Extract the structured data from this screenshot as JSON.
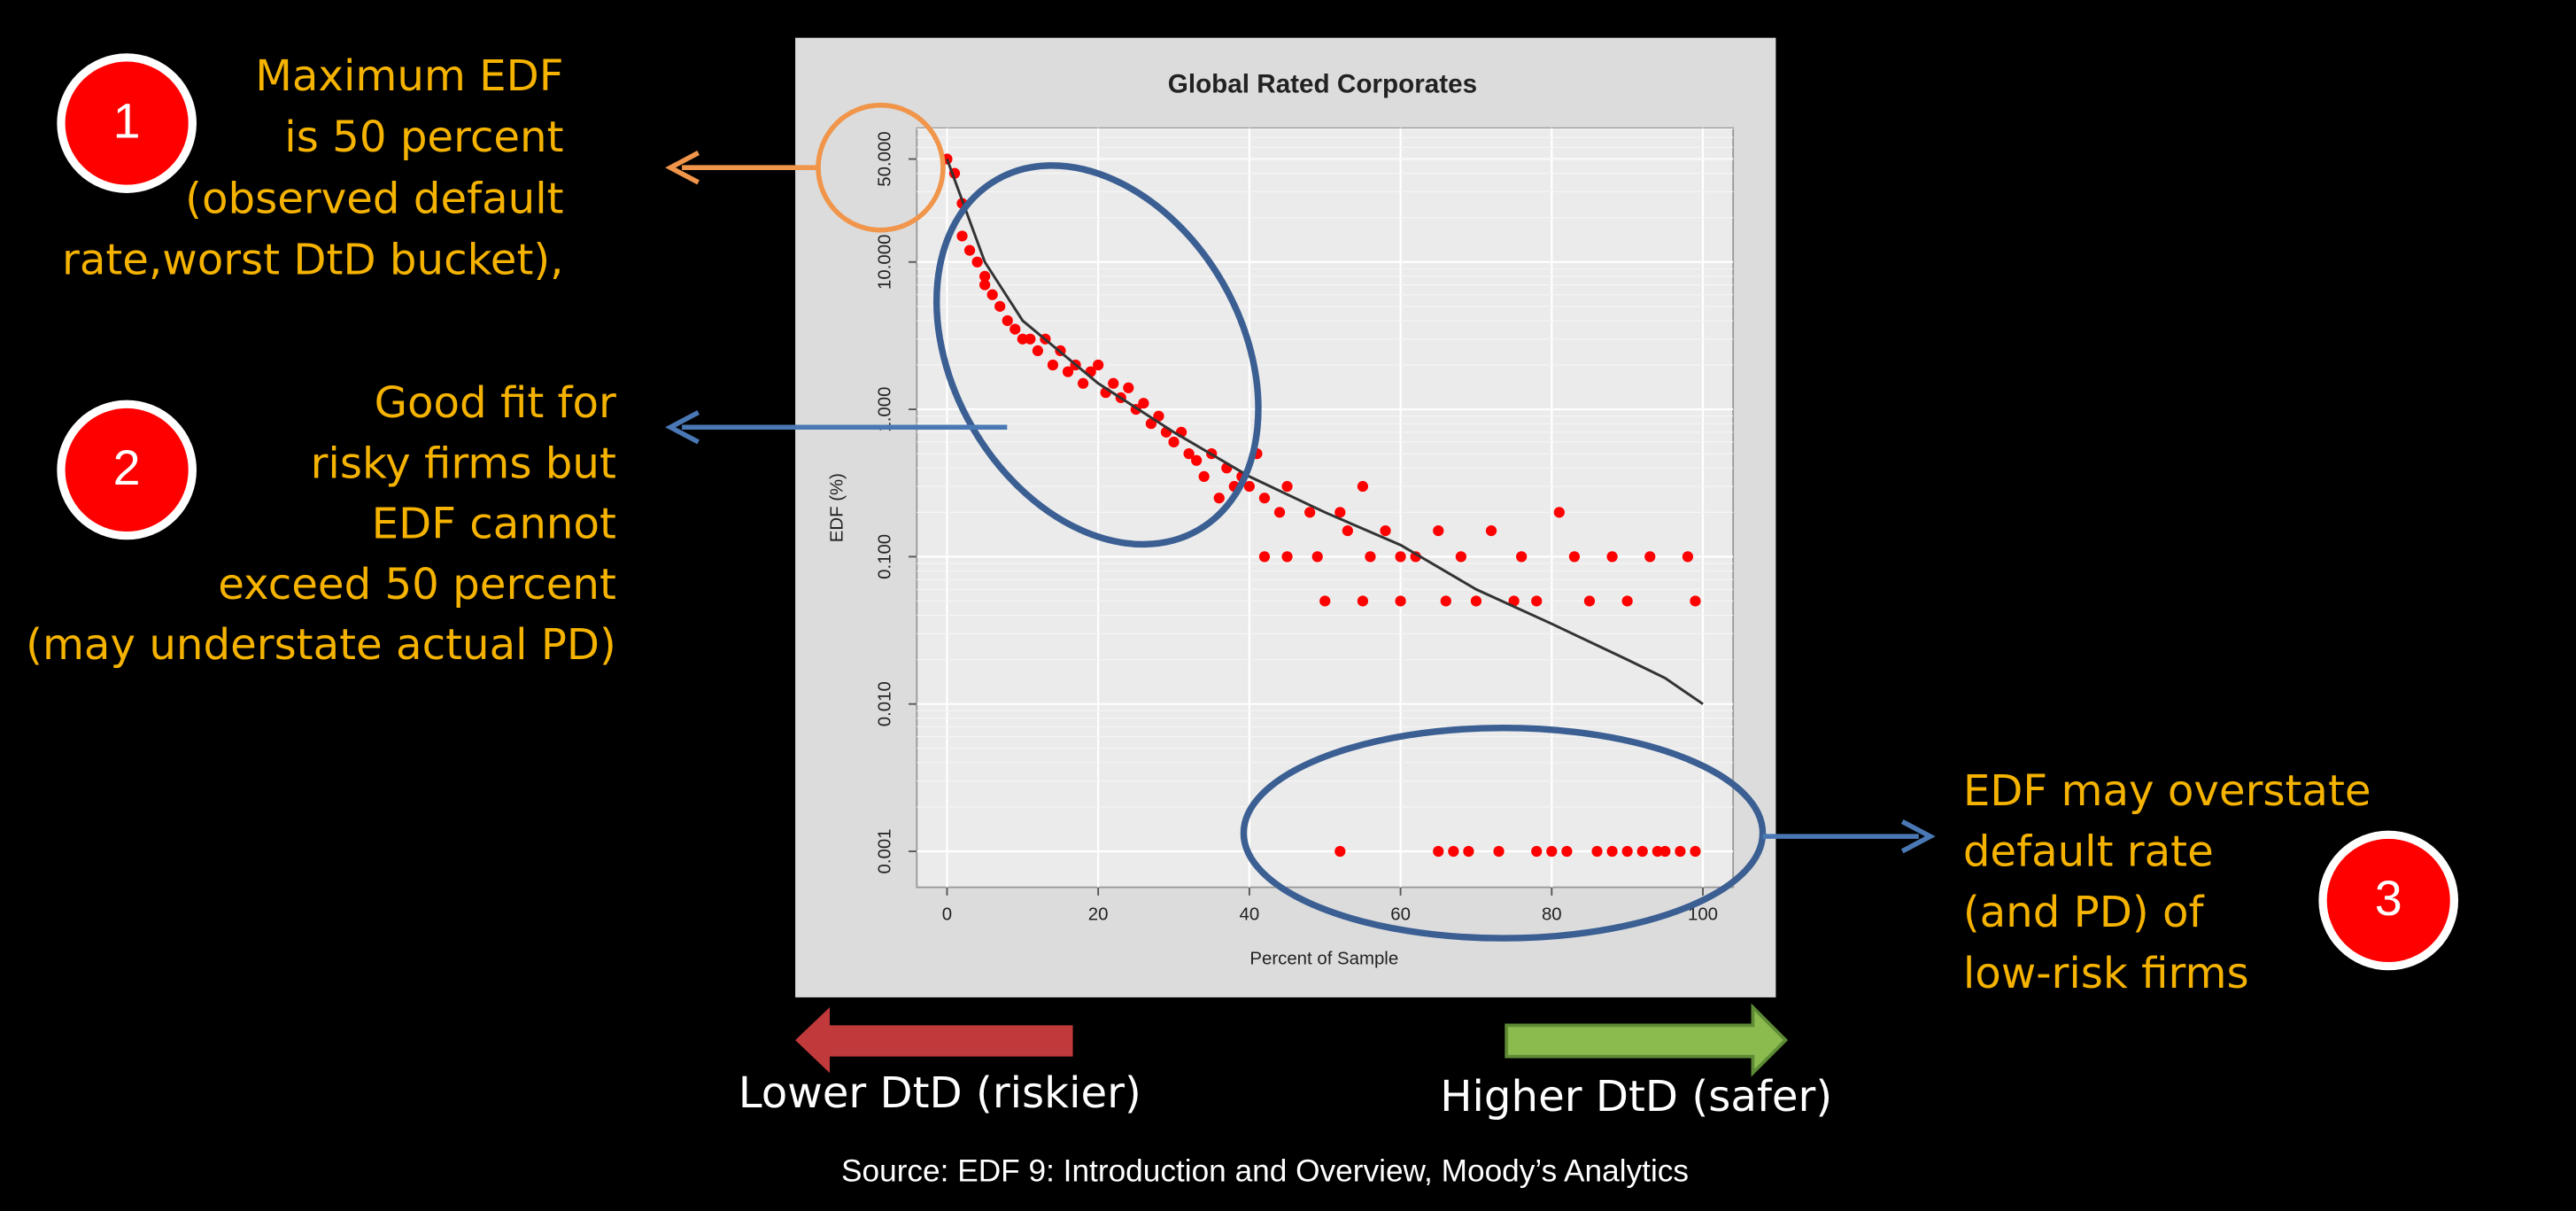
{
  "callouts": [
    {
      "badge": "1",
      "lines": [
        "Maximum EDF",
        "is 50 percent",
        "(observed default",
        "rate,worst DtD bucket),"
      ]
    },
    {
      "badge": "2",
      "lines": [
        "Good fit for",
        "risky firms but",
        "EDF cannot",
        "exceed 50 percent",
        "(may understate actual PD)"
      ]
    },
    {
      "badge": "3",
      "lines": [
        "EDF may overstate",
        "default rate",
        "(and PD) of",
        "low-risk firms"
      ]
    }
  ],
  "direction": {
    "left": "Lower DtD (riskier)",
    "right": "Higher DtD (safer)"
  },
  "source": "Source: EDF 9: Introduction and Overview, Moody’s Analytics",
  "chart_data": {
    "type": "scatter",
    "title": "Global Rated Corporates",
    "x_label": "Percent of Sample",
    "y_label": "EDF (%)",
    "log_y": true,
    "grid": true,
    "color": "#ff0000",
    "xlim": [
      -4,
      104
    ],
    "ylim": [
      0.00057,
      81
    ],
    "xticks": [
      0,
      20,
      40,
      60,
      80,
      100
    ],
    "yticks": [
      {
        "value": 0.001,
        "label": "0.001"
      },
      {
        "value": 0.01,
        "label": "0.010"
      },
      {
        "value": 0.1,
        "label": "0.100"
      },
      {
        "value": 1,
        "label": "1.000"
      },
      {
        "value": 10,
        "label": "10.000"
      },
      {
        "value": 50,
        "label": "50.000"
      }
    ],
    "x": [
      0,
      1,
      2,
      2,
      3,
      4,
      5,
      5,
      6,
      7,
      8,
      9,
      10,
      11,
      12,
      13,
      14,
      15,
      16,
      17,
      18,
      19,
      20,
      21,
      22,
      23,
      24,
      25,
      26,
      27,
      28,
      29,
      30,
      31,
      32,
      33,
      34,
      35,
      36,
      37,
      38,
      39,
      40,
      41,
      42,
      42,
      44,
      45,
      45,
      48,
      49,
      50,
      52,
      53,
      55,
      55,
      56,
      58,
      60,
      60,
      62,
      65,
      66,
      68,
      70,
      72,
      75,
      76,
      78,
      81,
      83,
      85,
      88,
      90,
      93,
      98,
      99,
      52,
      65,
      67,
      69,
      73,
      78,
      80,
      82,
      86,
      88,
      90,
      92,
      94,
      95,
      97,
      99
    ],
    "values": [
      50,
      40,
      25,
      15,
      12,
      10,
      8,
      7,
      6,
      5,
      4,
      3.5,
      3,
      3,
      2.5,
      3,
      2,
      2.5,
      1.8,
      2,
      1.5,
      1.8,
      2,
      1.3,
      1.5,
      1.2,
      1.4,
      1,
      1.1,
      0.8,
      0.9,
      0.7,
      0.6,
      0.7,
      0.5,
      0.45,
      0.35,
      0.5,
      0.25,
      0.4,
      0.3,
      0.35,
      0.3,
      0.5,
      0.25,
      0.1,
      0.2,
      0.3,
      0.1,
      0.2,
      0.1,
      0.05,
      0.2,
      0.15,
      0.3,
      0.05,
      0.1,
      0.15,
      0.1,
      0.05,
      0.1,
      0.15,
      0.05,
      0.1,
      0.05,
      0.15,
      0.05,
      0.1,
      0.05,
      0.2,
      0.1,
      0.05,
      0.1,
      0.05,
      0.1,
      0.1,
      0.05,
      0.001,
      0.001,
      0.001,
      0.001,
      0.001,
      0.001,
      0.001,
      0.001,
      0.001,
      0.001,
      0.001,
      0.001,
      0.001,
      0.001,
      0.001,
      0.001
    ],
    "curve": {
      "color": "#333333",
      "x": [
        0,
        5,
        10,
        20,
        30,
        40,
        50,
        60,
        70,
        80,
        90,
        95,
        100
      ],
      "values": [
        50,
        10,
        4,
        1.5,
        0.7,
        0.35,
        0.2,
        0.12,
        0.06,
        0.035,
        0.02,
        0.015,
        0.01
      ]
    }
  }
}
